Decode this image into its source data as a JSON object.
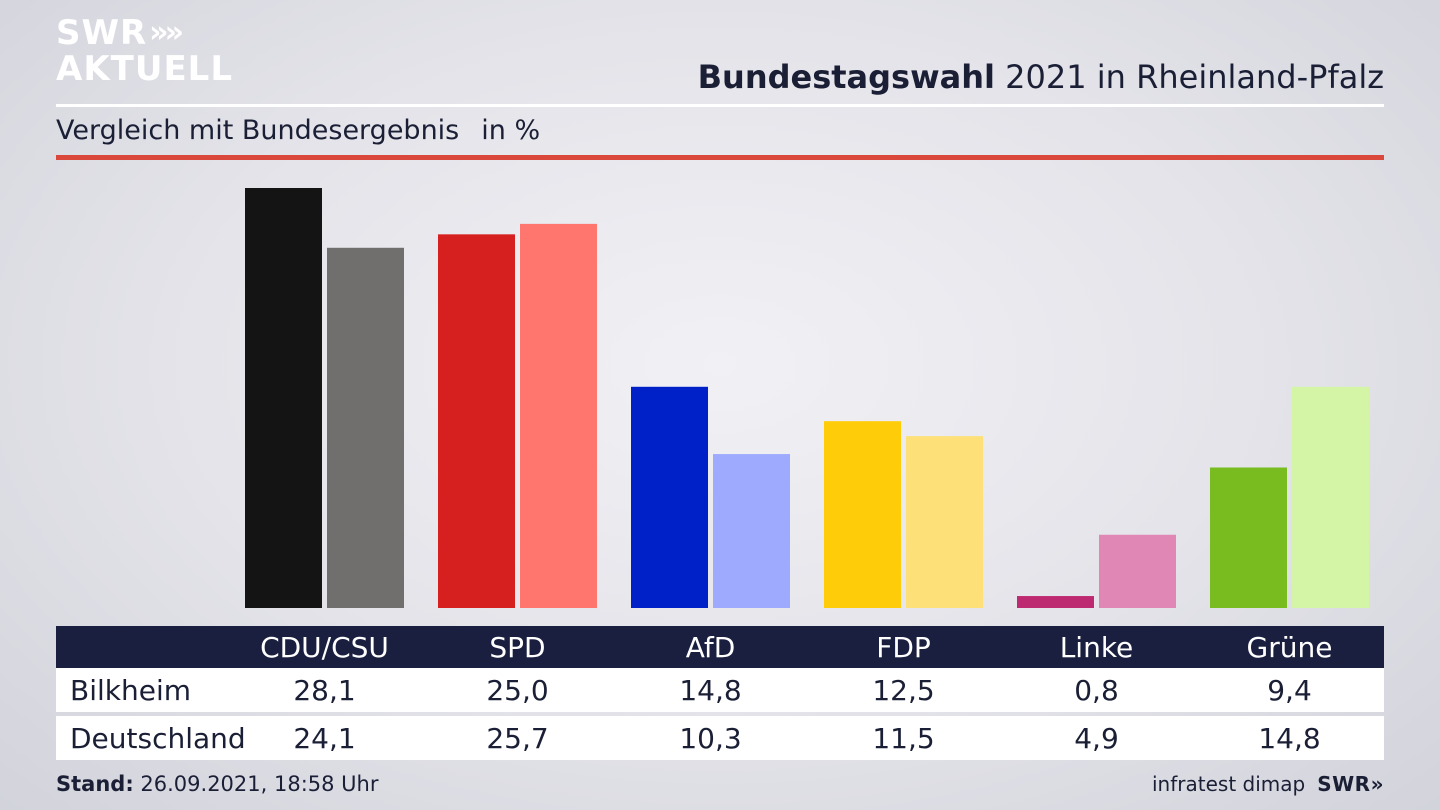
{
  "logo": {
    "line1": "SWR",
    "line2": "AKTUELL",
    "chevrons": "»"
  },
  "title": {
    "bold": "Bundestagswahl",
    "rest": " 2021 in Rheinland-Pfalz"
  },
  "subtitle": {
    "text": "Vergleich mit Bundesergebnis",
    "unit": "in %"
  },
  "colors": {
    "accent_rule": "#d9483b",
    "table_header": "#1a1f40"
  },
  "chart_data": {
    "type": "bar",
    "categories": [
      "CDU/CSU",
      "SPD",
      "AfD",
      "FDP",
      "Linke",
      "Grüne"
    ],
    "series": [
      {
        "name": "Bilkheim",
        "values": [
          28.1,
          25.0,
          14.8,
          12.5,
          0.8,
          9.4
        ],
        "colors": [
          "#141414",
          "#d61f1f",
          "#0021c8",
          "#ffcc0a",
          "#be2a72",
          "#78bc20"
        ]
      },
      {
        "name": "Deutschland",
        "values": [
          24.1,
          25.7,
          10.3,
          11.5,
          4.9,
          14.8
        ],
        "colors": [
          "#706f6d",
          "#ff766f",
          "#9eaafe",
          "#fde078",
          "#e087b6",
          "#d4f5a6"
        ]
      }
    ],
    "title": "Bundestagswahl 2021 in Rheinland-Pfalz",
    "ylabel": "in %",
    "ylim": [
      0,
      28.1
    ],
    "grid": false,
    "legend": "table-below"
  },
  "table": {
    "headers": [
      "CDU/CSU",
      "SPD",
      "AfD",
      "FDP",
      "Linke",
      "Grüne"
    ],
    "rows": [
      {
        "label": "Bilkheim",
        "values": [
          "28,1",
          "25,0",
          "14,8",
          "12,5",
          "0,8",
          "9,4"
        ]
      },
      {
        "label": "Deutschland",
        "values": [
          "24,1",
          "25,7",
          "10,3",
          "11,5",
          "4,9",
          "14,8"
        ]
      }
    ]
  },
  "footer": {
    "stand_label": "Stand:",
    "stand_value": " 26.09.2021, 18:58 Uhr",
    "source": "infratest dimap",
    "brand": "SWR»"
  }
}
